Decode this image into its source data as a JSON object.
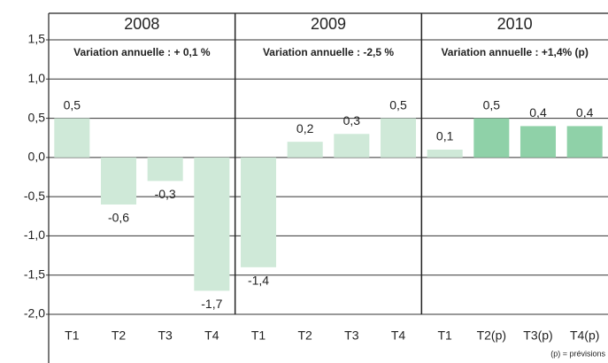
{
  "chart_data": {
    "type": "bar",
    "groups": [
      {
        "label": "2008",
        "annotation": "Variation annuelle : + 0,1 %"
      },
      {
        "label": "2009",
        "annotation": "Variation annuelle : -2,5 %"
      },
      {
        "label": "2010",
        "annotation": "Variation annuelle : +1,4% (p)"
      }
    ],
    "categories": [
      "T1",
      "T2",
      "T3",
      "T4",
      "T1",
      "T2",
      "T3",
      "T4",
      "T1",
      "T2(p)",
      "T3(p)",
      "T4(p)"
    ],
    "values": [
      0.5,
      -0.6,
      -0.3,
      -1.7,
      -1.4,
      0.2,
      0.3,
      0.5,
      0.1,
      0.5,
      0.4,
      0.4
    ],
    "value_labels": [
      "0,5",
      "-0,6",
      "-0,3",
      "-1,7",
      "-1,4",
      "0,2",
      "0,3",
      "0,5",
      "0,1",
      "0,5",
      "0,4",
      "0,4"
    ],
    "colors": [
      "#cfe9d8",
      "#cfe9d8",
      "#cfe9d8",
      "#cfe9d8",
      "#cfe9d8",
      "#cfe9d8",
      "#cfe9d8",
      "#cfe9d8",
      "#cfe9d8",
      "#8fd1a8",
      "#8fd1a8",
      "#8fd1a8"
    ],
    "ylim": [
      -2,
      1.5
    ],
    "yticks": [
      {
        "value": -2,
        "label": "-2,0"
      },
      {
        "value": -1.5,
        "label": "-1,5"
      },
      {
        "value": -1,
        "label": "-1,0"
      },
      {
        "value": -0.5,
        "label": "-0,5"
      },
      {
        "value": 0,
        "label": "0,0"
      },
      {
        "value": 0.5,
        "label": "0,5"
      },
      {
        "value": 1,
        "label": "1,0"
      },
      {
        "value": 1.5,
        "label": "1,5"
      }
    ],
    "grid": true,
    "footnote": "(p) = prévisions"
  }
}
